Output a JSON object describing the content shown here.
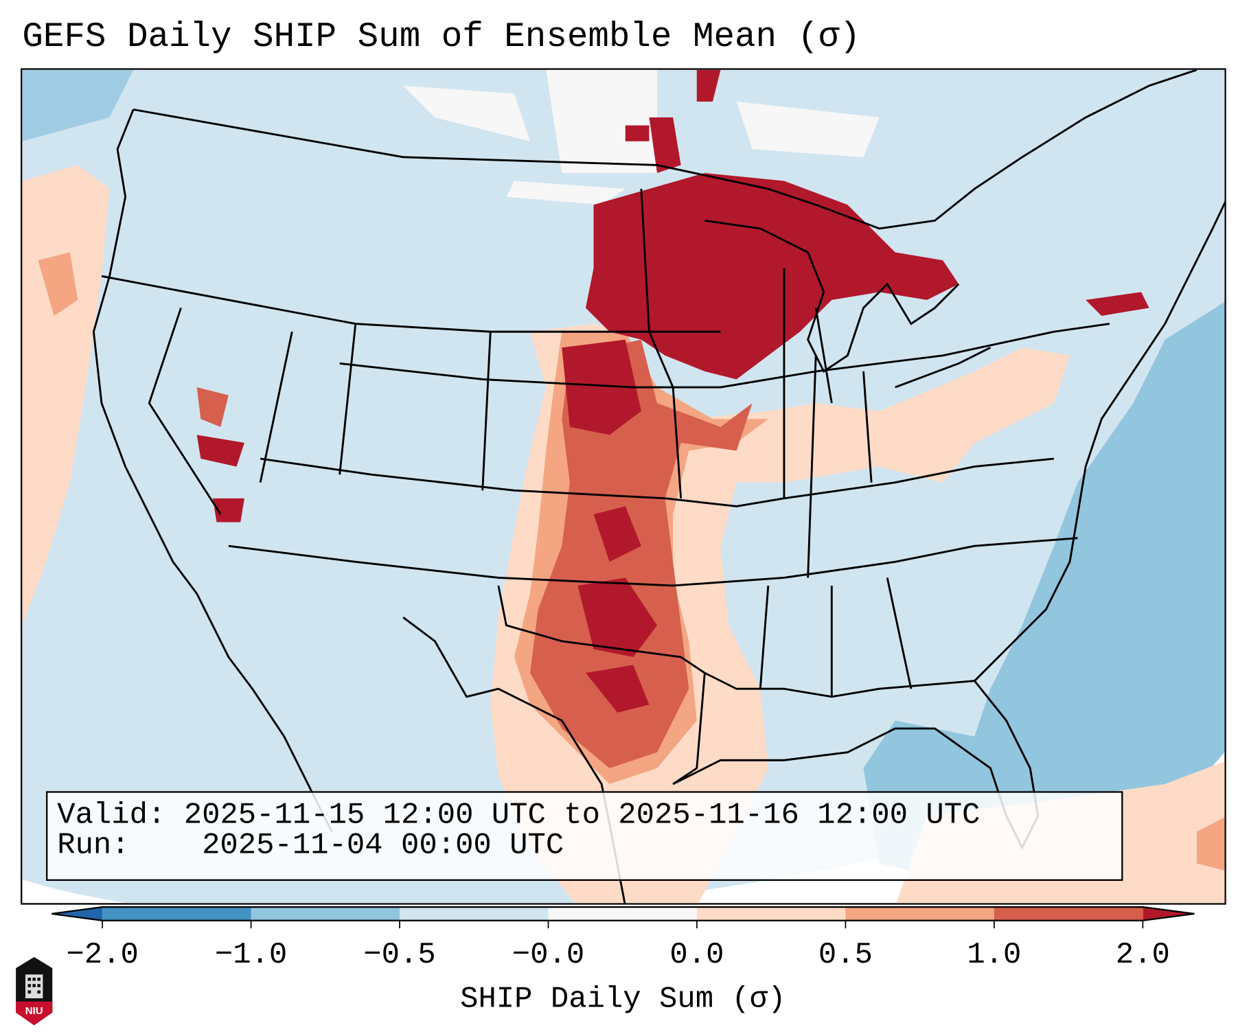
{
  "title": "GEFS Daily SHIP Sum of Ensemble Mean (σ)",
  "info": {
    "valid_label": "Valid:",
    "valid_value": "2025-11-15 12:00 UTC to 2025-11-16 12:00 UTC",
    "run_label": "Run:",
    "run_value": "2025-11-04 00:00 UTC"
  },
  "colorbar": {
    "label": "SHIP Daily Sum (σ)",
    "ticks": [
      "−2.0",
      "−1.0",
      "−0.5",
      "−0.0",
      "0.0",
      "0.5",
      "1.0",
      "2.0"
    ],
    "colors": {
      "under": "#2166ac",
      "b1": "#4393c3",
      "b2": "#92c5de",
      "b3": "#d1e5f0",
      "b4": "#f7f7f7",
      "b5": "#fddbc7",
      "b6": "#f4a582",
      "b7": "#d6604d",
      "over": "#b2182b"
    }
  },
  "logo": {
    "text": "NIU"
  }
}
